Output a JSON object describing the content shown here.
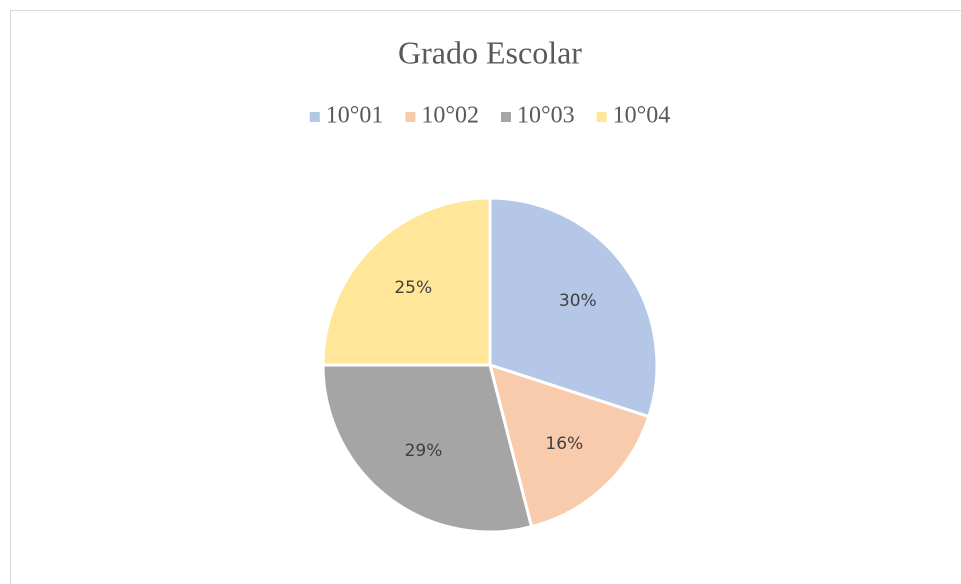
{
  "chart_data": {
    "type": "pie",
    "title": "Grado Escolar",
    "categories": [
      "10°01",
      "10°02",
      "10°03",
      "10°04"
    ],
    "values": [
      30,
      16,
      29,
      25
    ],
    "value_labels": [
      "30%",
      "16%",
      "29%",
      "25%"
    ],
    "colors": [
      "#b4c7e7",
      "#f8cbad",
      "#a5a5a5",
      "#ffe699"
    ],
    "legend": "top"
  }
}
